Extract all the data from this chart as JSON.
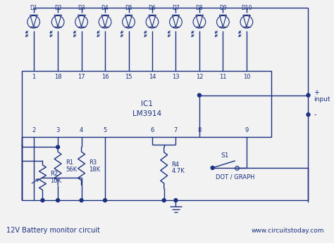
{
  "bg_color": "#f2f2f2",
  "line_color": "#1a3080",
  "title": "12V Battery monitor circuit",
  "website": "www.circuitstoday.com",
  "ic_label": "IC1",
  "ic_model": "LM3914",
  "top_pin_labels": [
    "1",
    "18",
    "17",
    "16",
    "15",
    "14",
    "13",
    "12",
    "11",
    "10"
  ],
  "bot_pin_labels": [
    "2",
    "3",
    "4",
    "5",
    "6",
    "7",
    "8",
    "9"
  ],
  "led_labels": [
    "D1",
    "D2",
    "D3",
    "D4",
    "D5",
    "D6",
    "D7",
    "D8",
    "D9",
    "D10"
  ],
  "r1_label": "R1",
  "r1_val": "56K",
  "r2_label": "R2",
  "r2_val": "10K",
  "r3_label": "R3",
  "r3_val": "18K",
  "r4_label": "R4",
  "r4_val": "4.7K",
  "sw_label": "S1",
  "sw_text": "DOT / GRAPH",
  "input_label": "input",
  "plus_label": "+",
  "minus_label": "-"
}
